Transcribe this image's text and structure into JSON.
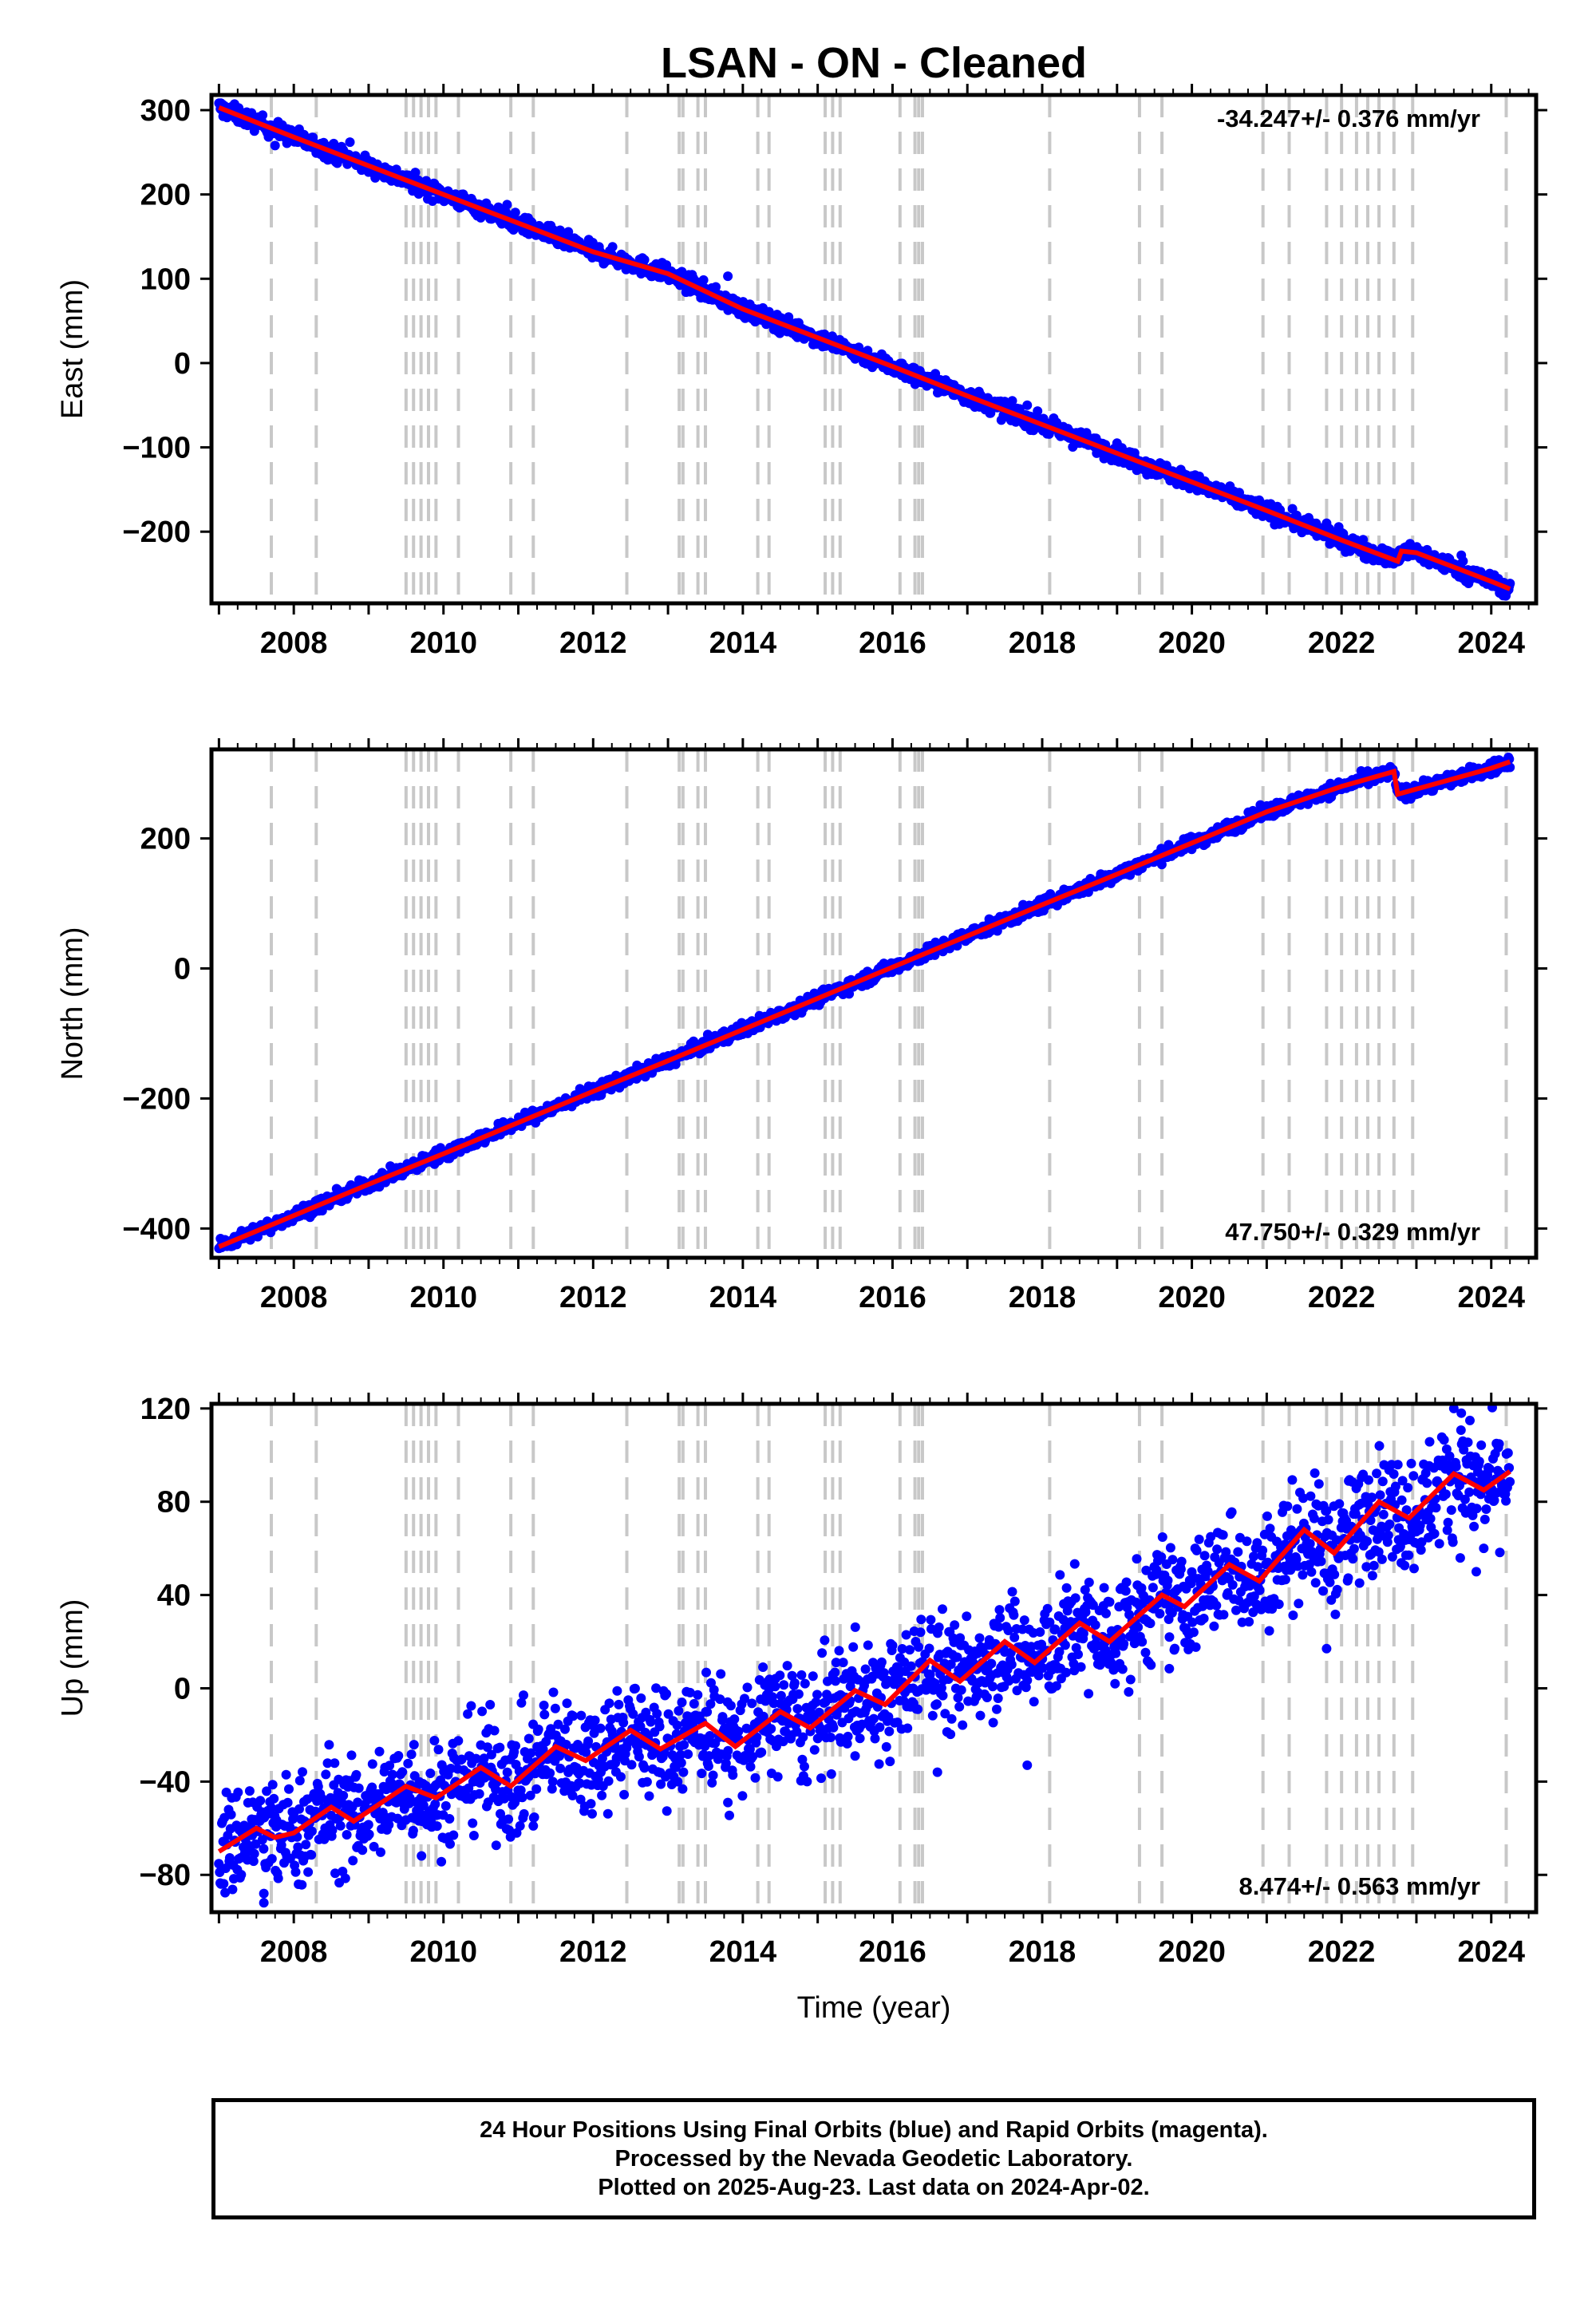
{
  "title": "LSAN  - ON - Cleaned",
  "footer": {
    "lines": [
      "24 Hour Positions Using Final Orbits (blue) and Rapid Orbits (magenta).",
      "Processed by the Nevada Geodetic Laboratory.",
      "Plotted on 2025-Aug-23. Last data on 2024-Apr-02."
    ]
  },
  "colors": {
    "data_points": "#0000ff",
    "model_line": "#ff0000",
    "event_lines": "#c8c8c8",
    "frame": "#000000"
  },
  "chart_data": [
    {
      "type": "scatter",
      "ylabel": "East (mm)",
      "xlabel": "",
      "xlim": [
        2006.9,
        2024.6
      ],
      "ylim": [
        -285,
        318
      ],
      "yticks": [
        300,
        200,
        100,
        0,
        -100,
        -200
      ],
      "yticklabels": [
        "300",
        "200",
        "100",
        "0",
        "−100",
        "−200"
      ],
      "xticks": [
        2008,
        2010,
        2012,
        2014,
        2016,
        2018,
        2020,
        2022,
        2024
      ],
      "xticklabels": [
        "2008",
        "2010",
        "2012",
        "2014",
        "2016",
        "2018",
        "2020",
        "2022",
        "2024"
      ],
      "rate_label": "-34.247+/- 0.376 mm/yr",
      "rate_position": "top-right",
      "model_line": [
        [
          2007.0,
          303
        ],
        [
          2008.0,
          268
        ],
        [
          2009.0,
          234
        ],
        [
          2010.0,
          200
        ],
        [
          2011.0,
          166
        ],
        [
          2012.0,
          132
        ],
        [
          2013.0,
          106
        ],
        [
          2014.0,
          64
        ],
        [
          2015.0,
          30
        ],
        [
          2016.0,
          -4
        ],
        [
          2017.0,
          -39
        ],
        [
          2018.0,
          -73
        ],
        [
          2019.0,
          -107
        ],
        [
          2020.0,
          -141
        ],
        [
          2021.0,
          -175
        ],
        [
          2022.0,
          -210
        ],
        [
          2022.75,
          -235
        ],
        [
          2022.8,
          -223
        ],
        [
          2023.0,
          -225
        ],
        [
          2024.0,
          -259
        ],
        [
          2024.25,
          -268
        ]
      ],
      "scatter_spread": 5,
      "outliers": [
        [
          2007.75,
          258
        ],
        [
          2008.75,
          262
        ],
        [
          2010.85,
          188
        ],
        [
          2013.8,
          103
        ],
        [
          2017.8,
          -50
        ],
        [
          2021.8,
          -190
        ],
        [
          2023.6,
          -228
        ]
      ]
    },
    {
      "type": "scatter",
      "ylabel": "North (mm)",
      "xlabel": "",
      "xlim": [
        2006.9,
        2024.6
      ],
      "ylim": [
        -445,
        337
      ],
      "yticks": [
        200,
        0,
        -200,
        -400
      ],
      "yticklabels": [
        "200",
        "0",
        "−200",
        "−400"
      ],
      "xticks": [
        2008,
        2010,
        2012,
        2014,
        2016,
        2018,
        2020,
        2022,
        2024
      ],
      "xticklabels": [
        "2008",
        "2010",
        "2012",
        "2014",
        "2016",
        "2018",
        "2020",
        "2022",
        "2024"
      ],
      "rate_label": "47.750+/- 0.329 mm/yr",
      "rate_position": "bottom-right",
      "model_line": [
        [
          2007.0,
          -428
        ],
        [
          2008.0,
          -380
        ],
        [
          2009.0,
          -332
        ],
        [
          2010.0,
          -285
        ],
        [
          2011.0,
          -237
        ],
        [
          2012.0,
          -189
        ],
        [
          2013.0,
          -142
        ],
        [
          2014.0,
          -94
        ],
        [
          2015.0,
          -46
        ],
        [
          2016.0,
          2
        ],
        [
          2017.0,
          50
        ],
        [
          2018.0,
          98
        ],
        [
          2019.0,
          145
        ],
        [
          2020.0,
          193
        ],
        [
          2021.0,
          241
        ],
        [
          2022.0,
          280
        ],
        [
          2022.7,
          303
        ],
        [
          2022.75,
          268
        ],
        [
          2023.0,
          276
        ],
        [
          2024.0,
          308
        ],
        [
          2024.25,
          318
        ]
      ],
      "scatter_spread": 5,
      "outliers": [
        [
          2016.5,
          35
        ],
        [
          2021.0,
          250
        ]
      ]
    },
    {
      "type": "scatter",
      "ylabel": "Up (mm)",
      "xlabel": "Time (year)",
      "xlim": [
        2006.9,
        2024.6
      ],
      "ylim": [
        -96,
        122
      ],
      "yticks": [
        120,
        80,
        40,
        0,
        -40,
        -80
      ],
      "yticklabels": [
        "120",
        "80",
        "40",
        "0",
        "−40",
        "−80"
      ],
      "xticks": [
        2008,
        2010,
        2012,
        2014,
        2016,
        2018,
        2020,
        2022,
        2024
      ],
      "xticklabels": [
        "2008",
        "2010",
        "2012",
        "2014",
        "2016",
        "2018",
        "2020",
        "2022",
        "2024"
      ],
      "rate_label": "8.474+/- 0.563 mm/yr",
      "rate_position": "bottom-right",
      "model_line": [
        [
          2007.0,
          -70
        ],
        [
          2007.5,
          -60
        ],
        [
          2007.75,
          -64
        ],
        [
          2008.0,
          -62
        ],
        [
          2008.5,
          -51
        ],
        [
          2008.8,
          -57
        ],
        [
          2009.5,
          -42
        ],
        [
          2009.9,
          -47
        ],
        [
          2010.5,
          -34
        ],
        [
          2010.9,
          -42
        ],
        [
          2011.5,
          -25
        ],
        [
          2011.9,
          -31
        ],
        [
          2012.5,
          -18
        ],
        [
          2012.9,
          -26
        ],
        [
          2013.5,
          -15
        ],
        [
          2013.9,
          -25
        ],
        [
          2014.5,
          -10
        ],
        [
          2014.9,
          -17
        ],
        [
          2015.5,
          -1
        ],
        [
          2015.9,
          -7
        ],
        [
          2016.5,
          12
        ],
        [
          2016.9,
          3
        ],
        [
          2017.5,
          20
        ],
        [
          2017.9,
          11
        ],
        [
          2018.5,
          28
        ],
        [
          2018.9,
          20
        ],
        [
          2019.6,
          40
        ],
        [
          2019.9,
          35
        ],
        [
          2020.5,
          53
        ],
        [
          2020.9,
          46
        ],
        [
          2021.5,
          68
        ],
        [
          2021.9,
          58
        ],
        [
          2022.5,
          80
        ],
        [
          2022.9,
          73
        ],
        [
          2023.5,
          92
        ],
        [
          2023.9,
          85
        ],
        [
          2024.25,
          93
        ]
      ],
      "scatter_spread": 12,
      "outliers": [
        [
          2007.6,
          -92
        ],
        [
          2007.6,
          -88
        ],
        [
          2011.2,
          -59
        ],
        [
          2013.8,
          -49
        ],
        [
          2015.5,
          -29
        ],
        [
          2016.6,
          -36
        ],
        [
          2017.8,
          -33
        ],
        [
          2019.7,
          22
        ],
        [
          2021.8,
          17
        ],
        [
          2023.5,
          120
        ],
        [
          2023.6,
          118
        ],
        [
          2023.8,
          50
        ],
        [
          2023.9,
          60
        ]
      ]
    }
  ],
  "event_lines": [
    2007.7,
    2008.3,
    2009.5,
    2009.6,
    2009.7,
    2009.8,
    2009.9,
    2010.2,
    2010.9,
    2011.2,
    2012.45,
    2013.15,
    2013.2,
    2013.4,
    2013.5,
    2014.2,
    2014.35,
    2015.1,
    2015.2,
    2015.3,
    2016.1,
    2016.3,
    2016.35,
    2016.4,
    2018.1,
    2019.3,
    2019.6,
    2020.95,
    2021.3,
    2021.8,
    2022.0,
    2022.2,
    2022.35,
    2022.5,
    2022.7,
    2022.95,
    2024.2
  ]
}
